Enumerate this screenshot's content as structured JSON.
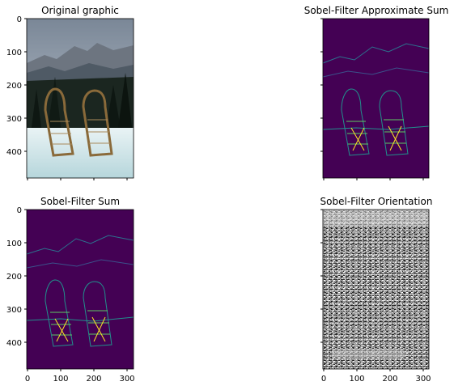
{
  "figure": {
    "panels": [
      {
        "id": "original",
        "title": "Original graphic",
        "kind": "photo",
        "y_ticks": [
          "0",
          "100",
          "200",
          "300",
          "400"
        ],
        "x_ticks": [],
        "show_y_labels": true,
        "show_x_labels": false
      },
      {
        "id": "approx-sum",
        "title": "Sobel-Filter Approximate Sum",
        "kind": "edges",
        "y_ticks": [],
        "x_ticks": [],
        "show_y_labels": false,
        "show_x_labels": false
      },
      {
        "id": "sum",
        "title": "Sobel-Filter Sum",
        "kind": "edges",
        "y_ticks": [
          "0",
          "100",
          "200",
          "300",
          "400"
        ],
        "x_ticks": [
          "0",
          "100",
          "200",
          "300"
        ],
        "show_y_labels": true,
        "show_x_labels": true
      },
      {
        "id": "orientation",
        "title": "Sobel-Filter Orientation",
        "kind": "orientation",
        "y_ticks": [],
        "x_ticks": [
          "0",
          "100",
          "200",
          "300"
        ],
        "show_y_labels": false,
        "show_x_labels": true
      }
    ],
    "colors": {
      "viridis_bg": "#440154",
      "edge_teal": "#21918c",
      "edge_green": "#5ec962",
      "edge_yellow": "#fde725"
    }
  }
}
